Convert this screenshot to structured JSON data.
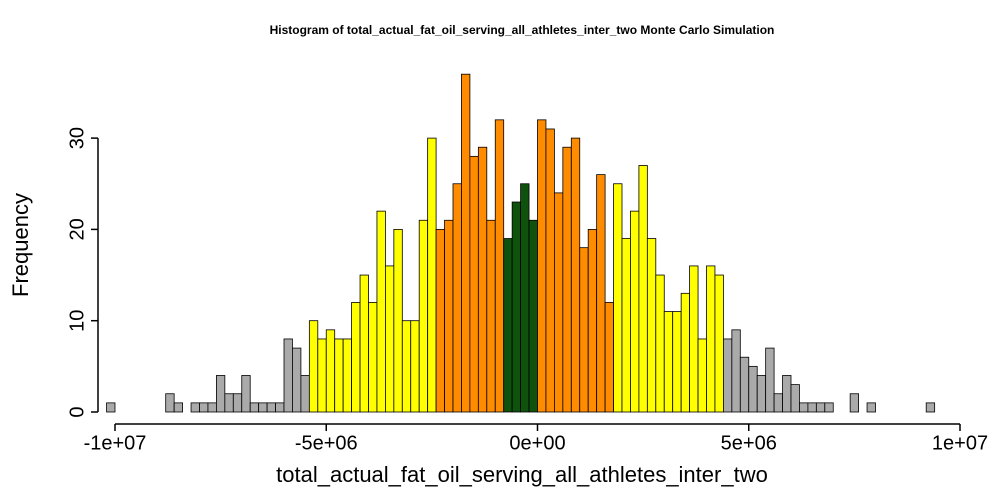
{
  "chart_data": {
    "type": "histogram",
    "title": "Histogram of  total_actual_fat_oil_serving_all_athletes_inter_two  Monte Carlo Simulation",
    "x_label": "total_actual_fat_oil_serving_all_athletes_inter_two",
    "y_label": "Frequency",
    "bins": [
      -10200000,
      -10000000,
      -9800000,
      -9600000,
      -9400000,
      -9200000,
      -9000000,
      -8800000,
      -8600000,
      -8400000,
      -8200000,
      -8000000,
      -7800000,
      -7600000,
      -7400000,
      -7200000,
      -7000000,
      -6800000,
      -6600000,
      -6400000,
      -6200000,
      -6000000,
      -5800000,
      -5600000,
      -5400000,
      -5200000,
      -5000000,
      -4800000,
      -4600000,
      -4400000,
      -4200000,
      -4000000,
      -3800000,
      -3600000,
      -3400000,
      -3200000,
      -3000000,
      -2800000,
      -2600000,
      -2400000,
      -2200000,
      -2000000,
      -1800000,
      -1600000,
      -1400000,
      -1200000,
      -1000000,
      -800000,
      -600000,
      -400000,
      -200000,
      0,
      200000,
      400000,
      600000,
      800000,
      1000000,
      1200000,
      1400000,
      1600000,
      1800000,
      2000000,
      2200000,
      2400000,
      2600000,
      2800000,
      3000000,
      3200000,
      3400000,
      3600000,
      3800000,
      4000000,
      4200000,
      4400000,
      4600000,
      4800000,
      5000000,
      5200000,
      5400000,
      5600000,
      5800000,
      6000000,
      6200000,
      6400000,
      6600000,
      6800000,
      7000000,
      7200000,
      7400000,
      7600000,
      7800000,
      8000000,
      8200000,
      8400000,
      8600000,
      8800000,
      9000000,
      9200000,
      9400000
    ],
    "values": [
      1,
      0,
      0,
      0,
      0,
      0,
      0,
      2,
      1,
      0,
      1,
      1,
      1,
      4,
      2,
      2,
      4,
      1,
      1,
      1,
      1,
      8,
      7,
      4,
      10,
      8,
      9,
      8,
      8,
      12,
      15,
      12,
      22,
      16,
      20,
      10,
      10,
      21,
      30,
      20,
      21,
      25,
      37,
      28,
      29,
      21,
      32,
      19,
      23,
      25,
      21,
      32,
      31,
      24,
      29,
      30,
      18,
      20,
      26,
      12,
      25,
      19,
      22,
      27,
      19,
      15,
      11,
      11,
      13,
      16,
      8,
      16,
      15,
      8,
      9,
      6,
      5,
      4,
      7,
      2,
      4,
      3,
      1,
      1,
      1,
      1,
      0,
      0,
      2,
      0,
      1,
      0,
      0,
      0,
      0,
      0,
      0,
      1
    ],
    "colors": [
      "#aaaaaa",
      "#aaaaaa",
      "#aaaaaa",
      "#aaaaaa",
      "#aaaaaa",
      "#aaaaaa",
      "#aaaaaa",
      "#aaaaaa",
      "#aaaaaa",
      "#aaaaaa",
      "#aaaaaa",
      "#aaaaaa",
      "#aaaaaa",
      "#aaaaaa",
      "#aaaaaa",
      "#aaaaaa",
      "#aaaaaa",
      "#aaaaaa",
      "#aaaaaa",
      "#aaaaaa",
      "#aaaaaa",
      "#aaaaaa",
      "#aaaaaa",
      "#aaaaaa",
      "#ffff00",
      "#ffff00",
      "#ffff00",
      "#ffff00",
      "#ffff00",
      "#ffff00",
      "#ffff00",
      "#ffff00",
      "#ffff00",
      "#ffff00",
      "#ffff00",
      "#ffff00",
      "#ffff00",
      "#ffff00",
      "#ffff00",
      "#ff8c00",
      "#ff8c00",
      "#ff8c00",
      "#ff8c00",
      "#ff8c00",
      "#ff8c00",
      "#ff8c00",
      "#ff8c00",
      "#0e520e",
      "#0e520e",
      "#0e520e",
      "#0e520e",
      "#ff8c00",
      "#ff8c00",
      "#ff8c00",
      "#ff8c00",
      "#ff8c00",
      "#ff8c00",
      "#ff8c00",
      "#ff8c00",
      "#ff8c00",
      "#ffff00",
      "#ffff00",
      "#ffff00",
      "#ffff00",
      "#ffff00",
      "#ffff00",
      "#ffff00",
      "#ffff00",
      "#ffff00",
      "#ffff00",
      "#ffff00",
      "#ffff00",
      "#ffff00",
      "#aaaaaa",
      "#aaaaaa",
      "#aaaaaa",
      "#aaaaaa",
      "#aaaaaa",
      "#aaaaaa",
      "#aaaaaa",
      "#aaaaaa",
      "#aaaaaa",
      "#aaaaaa",
      "#aaaaaa",
      "#aaaaaa",
      "#aaaaaa",
      "#aaaaaa",
      "#aaaaaa",
      "#aaaaaa",
      "#aaaaaa",
      "#aaaaaa",
      "#aaaaaa",
      "#aaaaaa",
      "#aaaaaa",
      "#aaaaaa",
      "#aaaaaa",
      "#aaaaaa",
      "#aaaaaa"
    ],
    "xlim": [
      -10000000,
      10000000
    ],
    "xticks": [
      {
        "value": -10000000,
        "label": "-1e+07"
      },
      {
        "value": -5000000,
        "label": "-5e+06"
      },
      {
        "value": 0,
        "label": "0e+00"
      },
      {
        "value": 5000000,
        "label": "5e+06"
      },
      {
        "value": 10000000,
        "label": "1e+07"
      }
    ],
    "ylim": [
      0,
      40
    ],
    "yticks": [
      0,
      10,
      20,
      30
    ]
  }
}
